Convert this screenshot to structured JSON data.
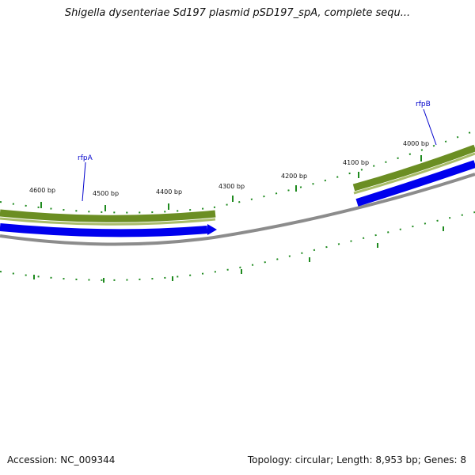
{
  "title": "Shigella dysenteriae Sd197 plasmid pSD197_spA, complete sequ...",
  "accession_text": "Accession: NC_009344",
  "summary_text": "Topology: circular; Length: 8,953 bp; Genes: 8",
  "genes": [
    {
      "label": "rfpA"
    },
    {
      "label": "rfpB"
    }
  ],
  "position_labels": [
    "4600 bp",
    "4500 bp",
    "4400 bp",
    "4300 bp",
    "4200 bp",
    "4100 bp",
    "4000 bp"
  ],
  "colors": {
    "feature_olive": "#6b8e23",
    "cds_blue": "#0000ee",
    "backbone_gray": "#8c8c8c",
    "tick_green": "#1e8a1e",
    "gene_label_blue": "#0000cc"
  }
}
